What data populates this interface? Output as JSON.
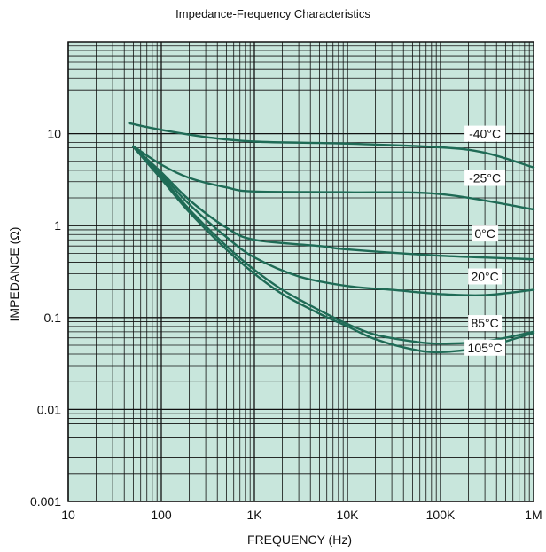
{
  "chart_data": {
    "type": "line",
    "title": "Impedance-Frequency Characteristics",
    "xlabel": "FREQUENCY (Hz)",
    "ylabel": "IMPEDANCE (Ω)",
    "x_scale": "log",
    "y_scale": "log",
    "xlim": [
      10,
      1000000
    ],
    "ylim": [
      0.001,
      100
    ],
    "x_ticks": [
      {
        "value": 10,
        "label": "10"
      },
      {
        "value": 100,
        "label": "100"
      },
      {
        "value": 1000,
        "label": "1K"
      },
      {
        "value": 10000,
        "label": "10K"
      },
      {
        "value": 100000,
        "label": "100K"
      },
      {
        "value": 1000000,
        "label": "1M"
      }
    ],
    "y_ticks": [
      {
        "value": 0.001,
        "label": "0.001"
      },
      {
        "value": 0.01,
        "label": "0.01"
      },
      {
        "value": 0.1,
        "label": "0.1"
      },
      {
        "value": 1,
        "label": "1"
      },
      {
        "value": 10,
        "label": "10"
      }
    ],
    "grid": true,
    "colors": {
      "plot_bg": "#c8e6dc",
      "grid": "#111111",
      "line": "#1f6b56"
    },
    "series": [
      {
        "name": "-40°C",
        "x": [
          45,
          100,
          300,
          1000,
          10000,
          100000,
          300000,
          1000000
        ],
        "y": [
          13,
          11,
          9.2,
          8.2,
          7.8,
          7.1,
          6.2,
          4.3
        ]
      },
      {
        "name": "-25°C",
        "x": [
          50,
          100,
          200,
          500,
          1000,
          10000,
          100000,
          1000000
        ],
        "y": [
          7.3,
          4.6,
          3.3,
          2.6,
          2.35,
          2.3,
          2.2,
          1.5
        ]
      },
      {
        "name": "0°C",
        "x": [
          50,
          100,
          200,
          500,
          1000,
          5000,
          10000,
          100000,
          1000000
        ],
        "y": [
          7.2,
          3.8,
          1.9,
          0.95,
          0.7,
          0.6,
          0.55,
          0.47,
          0.43
        ]
      },
      {
        "name": "20°C",
        "x": [
          50,
          100,
          200,
          500,
          1000,
          3000,
          10000,
          30000,
          100000,
          300000,
          1000000
        ],
        "y": [
          7.2,
          3.6,
          1.7,
          0.75,
          0.45,
          0.28,
          0.22,
          0.2,
          0.18,
          0.175,
          0.2
        ]
      },
      {
        "name": "85°C",
        "x": [
          50,
          100,
          200,
          500,
          1000,
          2000,
          5000,
          10000,
          20000,
          50000,
          100000,
          300000,
          1000000
        ],
        "y": [
          7.2,
          3.4,
          1.5,
          0.6,
          0.33,
          0.2,
          0.12,
          0.085,
          0.065,
          0.055,
          0.052,
          0.055,
          0.07
        ]
      },
      {
        "name": "105°C",
        "x": [
          50,
          100,
          200,
          500,
          1000,
          2000,
          5000,
          10000,
          20000,
          50000,
          100000,
          300000,
          1000000
        ],
        "y": [
          7.2,
          3.2,
          1.4,
          0.55,
          0.3,
          0.18,
          0.11,
          0.08,
          0.058,
          0.045,
          0.042,
          0.048,
          0.068
        ]
      }
    ]
  }
}
